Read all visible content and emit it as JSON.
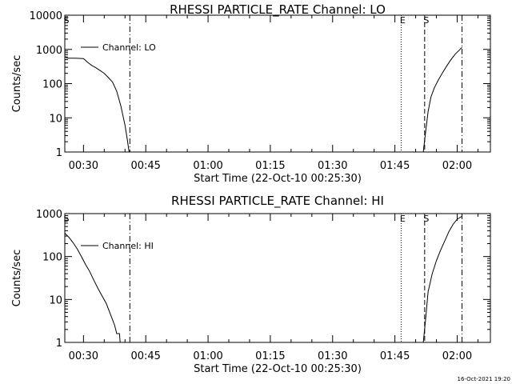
{
  "footer": {
    "timestamp": "16-Oct-2021 19:20"
  },
  "chart_data": [
    {
      "type": "line",
      "title": "RHESSI PARTICLE_RATE Channel: LO",
      "xlabel": "Start Time (22-Oct-10 00:25:30)",
      "ylabel": "Counts/sec",
      "yscale": "log",
      "ylim": [
        1,
        10000
      ],
      "xlim": [
        "00:25:30",
        "02:08:00"
      ],
      "x_ticks": [
        "00:30",
        "00:45",
        "01:00",
        "01:15",
        "01:30",
        "01:45",
        "02:00"
      ],
      "y_ticks": [
        "1",
        "10",
        "100",
        "1000",
        "10000"
      ],
      "legend": {
        "position": "top-left",
        "entries": [
          {
            "label": "Channel: LO",
            "style": "solid"
          }
        ]
      },
      "markers": [
        {
          "time": "00:25:30",
          "label": "S",
          "style": "dashed"
        },
        {
          "time": "00:41:10",
          "label": "",
          "style": "dashdot"
        },
        {
          "time": "01:46:30",
          "label": "E",
          "style": "dotted"
        },
        {
          "time": "01:52:10",
          "label": "S",
          "style": "dashed"
        },
        {
          "time": "02:01:10",
          "label": "",
          "style": "dashdot"
        }
      ],
      "series": [
        {
          "segments": [
            [
              [
                "00:25:30",
                600
              ],
              [
                "00:26:10",
                550
              ],
              [
                "00:28:00",
                550
              ],
              [
                "00:30:00",
                540
              ],
              [
                "00:31:00",
                420
              ],
              [
                "00:32:00",
                340
              ],
              [
                "00:33:00",
                290
              ],
              [
                "00:34:00",
                240
              ],
              [
                "00:35:00",
                200
              ],
              [
                "00:36:00",
                150
              ],
              [
                "00:37:00",
                110
              ],
              [
                "00:38:00",
                60
              ],
              [
                "00:39:00",
                22
              ],
              [
                "00:40:00",
                6
              ],
              [
                "00:40:30",
                2.5
              ],
              [
                "00:41:00",
                1
              ]
            ],
            [
              [
                "01:51:50",
                1
              ],
              [
                "01:52:30",
                5
              ],
              [
                "01:53:00",
                15
              ],
              [
                "01:53:40",
                40
              ],
              [
                "01:54:30",
                75
              ],
              [
                "01:55:30",
                130
              ],
              [
                "01:56:30",
                210
              ],
              [
                "01:57:30",
                330
              ],
              [
                "01:58:30",
                500
              ],
              [
                "01:59:30",
                720
              ],
              [
                "02:00:30",
                950
              ],
              [
                "02:01:10",
                1150
              ]
            ]
          ]
        }
      ]
    },
    {
      "type": "line",
      "title": "RHESSI PARTICLE_RATE Channel: HI",
      "xlabel": "Start Time (22-Oct-10 00:25:30)",
      "ylabel": "Counts/sec",
      "yscale": "log",
      "ylim": [
        1,
        1000
      ],
      "xlim": [
        "00:25:30",
        "02:08:00"
      ],
      "x_ticks": [
        "00:30",
        "00:45",
        "01:00",
        "01:15",
        "01:30",
        "01:45",
        "02:00"
      ],
      "y_ticks": [
        "1",
        "10",
        "100",
        "1000"
      ],
      "legend": {
        "position": "top-left",
        "entries": [
          {
            "label": "Channel: HI",
            "style": "solid"
          }
        ]
      },
      "markers": [
        {
          "time": "00:25:30",
          "label": "S",
          "style": "dashed"
        },
        {
          "time": "00:41:10",
          "label": "",
          "style": "dashdot"
        },
        {
          "time": "01:46:30",
          "label": "E",
          "style": "dotted"
        },
        {
          "time": "01:52:10",
          "label": "S",
          "style": "dashed"
        },
        {
          "time": "02:01:10",
          "label": "",
          "style": "dashdot"
        }
      ],
      "series": [
        {
          "segments": [
            [
              [
                "00:25:30",
                350
              ],
              [
                "00:26:30",
                280
              ],
              [
                "00:27:30",
                210
              ],
              [
                "00:28:30",
                150
              ],
              [
                "00:29:30",
                100
              ],
              [
                "00:30:30",
                65
              ],
              [
                "00:31:30",
                45
              ],
              [
                "00:32:30",
                28
              ],
              [
                "00:33:30",
                18
              ],
              [
                "00:34:30",
                12
              ],
              [
                "00:35:30",
                8
              ],
              [
                "00:36:30",
                4.5
              ],
              [
                "00:37:30",
                2.5
              ],
              [
                "00:38:00",
                1.6
              ],
              [
                "00:38:40",
                1.6
              ],
              [
                "00:38:50",
                1
              ]
            ],
            [
              [
                "01:51:50",
                1
              ],
              [
                "01:52:20",
                3
              ],
              [
                "01:53:00",
                15
              ],
              [
                "01:54:00",
                40
              ],
              [
                "01:55:00",
                80
              ],
              [
                "01:56:00",
                140
              ],
              [
                "01:57:00",
                230
              ],
              [
                "01:58:00",
                380
              ],
              [
                "01:59:00",
                560
              ],
              [
                "02:00:00",
                740
              ],
              [
                "02:01:00",
                850
              ],
              [
                "02:01:10",
                860
              ]
            ]
          ]
        }
      ]
    }
  ]
}
